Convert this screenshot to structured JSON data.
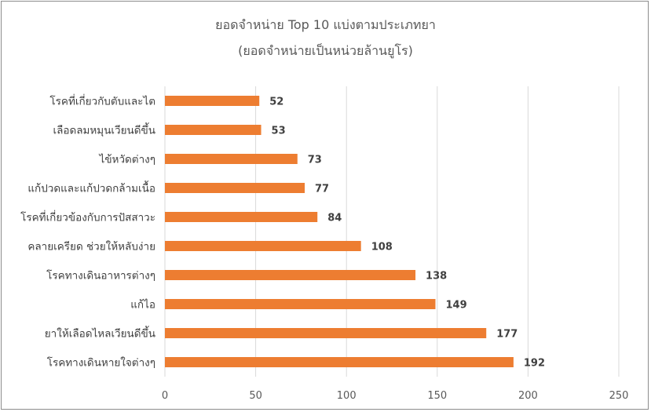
{
  "chart_data": {
    "type": "bar",
    "orientation": "horizontal",
    "title": "ยอดจำหน่าย Top 10 แบ่งตามประเภทยา",
    "subtitle": "(ยอดจำหน่ายเป็นหน่วยล้านยูโร)",
    "xlabel": "",
    "ylabel": "",
    "xlim": [
      0,
      250
    ],
    "xticks": [
      0,
      50,
      100,
      150,
      200,
      250
    ],
    "grid": true,
    "legend": "none",
    "bar_color": "#ed7d31",
    "categories": [
      "โรคที่เกี่ยวกับตับและไต",
      "เลือดลมหมุนเวียนดีขึ้น",
      "ไข้หวัดต่างๆ",
      "แก้ปวดและแก้ปวดกล้ามเนื้อ",
      "โรคที่เกี่ยวข้องกับการปัสสาวะ",
      "คลายเครียด ช่วยให้หลับง่าย",
      "โรคทางเดินอาหารต่างๆ",
      "แก้ไอ",
      "ยาให้เลือดไหลเวียนดีขึ้น",
      "โรคทางเดินหายใจต่างๆ"
    ],
    "values": [
      52,
      53,
      73,
      77,
      84,
      108,
      138,
      149,
      177,
      192
    ]
  }
}
